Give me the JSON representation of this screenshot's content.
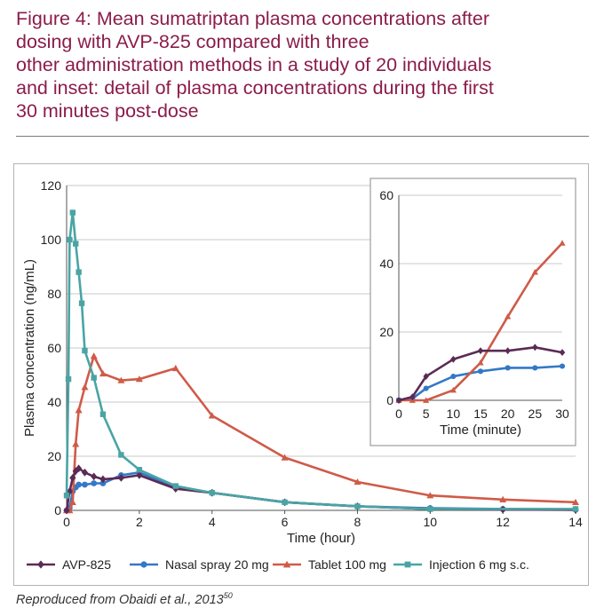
{
  "title_lines": [
    "Figure 4: Mean sumatriptan plasma concentrations after",
    "dosing with AVP-825 compared with three",
    "other administration methods in a study of 20 individuals",
    "and inset: detail of plasma concentrations during the first",
    "30 minutes post-dose"
  ],
  "source": {
    "text": "Reproduced from Obaidi et al., 2013",
    "ref": "50"
  },
  "colors": {
    "avp": "#5b2a55",
    "nasal": "#3478c6",
    "tablet": "#cf5b48",
    "injection": "#4aa4a4",
    "title": "#8b1c4a"
  },
  "chart_data": [
    {
      "type": "line",
      "xlabel": "Time (hour)",
      "ylabel": "Plasma concentration (ng/mL)",
      "xlim": [
        0,
        14
      ],
      "ylim": [
        0,
        120
      ],
      "xticks": [
        0,
        2,
        4,
        6,
        8,
        10,
        12,
        14
      ],
      "yticks": [
        0,
        20,
        40,
        60,
        80,
        100,
        120
      ],
      "grid": "horizontal",
      "legend_position": "bottom",
      "series": [
        {
          "name": "AVP-825",
          "color": "#5b2a55",
          "marker": "diamond",
          "x": [
            0,
            0.083,
            0.167,
            0.25,
            0.333,
            0.5,
            0.75,
            1,
            1.5,
            2,
            3,
            4,
            6,
            8,
            10,
            12,
            14
          ],
          "y": [
            0,
            7,
            12,
            14.5,
            15.5,
            14,
            12.5,
            11.5,
            12,
            13,
            8,
            6.5,
            3,
            1.5,
            0.5,
            0.3,
            0.2
          ]
        },
        {
          "name": "Nasal spray 20 mg",
          "color": "#3478c6",
          "marker": "circle",
          "x": [
            0,
            0.083,
            0.167,
            0.25,
            0.333,
            0.5,
            0.75,
            1,
            1.5,
            2,
            3,
            4,
            6,
            8,
            10,
            12,
            14
          ],
          "y": [
            0,
            1,
            7,
            8.5,
            9.5,
            9.5,
            10,
            10,
            13,
            14,
            8.5,
            6.5,
            3,
            1.5,
            0.8,
            0.5,
            0.3
          ]
        },
        {
          "name": "Tablet 100 mg",
          "color": "#cf5b48",
          "marker": "triangle",
          "x": [
            0,
            0.083,
            0.167,
            0.25,
            0.333,
            0.5,
            0.75,
            1,
            1.5,
            2,
            3,
            4,
            6,
            8,
            10,
            12,
            14
          ],
          "y": [
            0,
            0,
            3,
            24.5,
            37,
            45.5,
            57,
            50.5,
            48,
            48.5,
            52.5,
            35,
            19.5,
            10.5,
            5.5,
            4,
            3
          ]
        },
        {
          "name": "Injection 6 mg s.c.",
          "color": "#4aa4a4",
          "marker": "square",
          "x": [
            0,
            0.05,
            0.083,
            0.167,
            0.25,
            0.333,
            0.417,
            0.5,
            0.75,
            1,
            1.5,
            2,
            3,
            4,
            6,
            8,
            10,
            14
          ],
          "y": [
            5.5,
            48.5,
            100,
            110,
            98.5,
            88,
            76.5,
            59,
            49,
            35.5,
            20.5,
            15,
            9,
            6.5,
            3,
            1.5,
            0.5,
            0.5
          ]
        }
      ]
    },
    {
      "type": "line",
      "role": "inset",
      "xlabel": "Time (minute)",
      "ylabel": "",
      "xlim": [
        0,
        30
      ],
      "ylim": [
        0,
        60
      ],
      "xticks": [
        0,
        5,
        10,
        15,
        20,
        25,
        30
      ],
      "yticks": [
        0,
        20,
        40,
        60
      ],
      "grid": "horizontal",
      "series": [
        {
          "name": "AVP-825",
          "color": "#5b2a55",
          "marker": "diamond",
          "x": [
            0,
            2.5,
            5,
            10,
            15,
            20,
            25,
            30
          ],
          "y": [
            0,
            1,
            7,
            12,
            14.5,
            14.5,
            15.5,
            14
          ]
        },
        {
          "name": "Nasal spray 20 mg",
          "color": "#3478c6",
          "marker": "circle",
          "x": [
            0,
            2.5,
            5,
            10,
            15,
            20,
            25,
            30
          ],
          "y": [
            0,
            0.5,
            3.5,
            7,
            8.5,
            9.5,
            9.5,
            10
          ]
        },
        {
          "name": "Tablet 100 mg",
          "color": "#cf5b48",
          "marker": "triangle",
          "x": [
            0,
            2.5,
            5,
            10,
            15,
            20,
            25,
            30
          ],
          "y": [
            0,
            0,
            0,
            3,
            11,
            24.5,
            37.5,
            46
          ]
        },
        {
          "name": "Injection 6 mg s.c.",
          "color": "#4aa4a4",
          "marker": "square",
          "x": [
            0
          ],
          "y": [
            0
          ]
        }
      ]
    }
  ]
}
